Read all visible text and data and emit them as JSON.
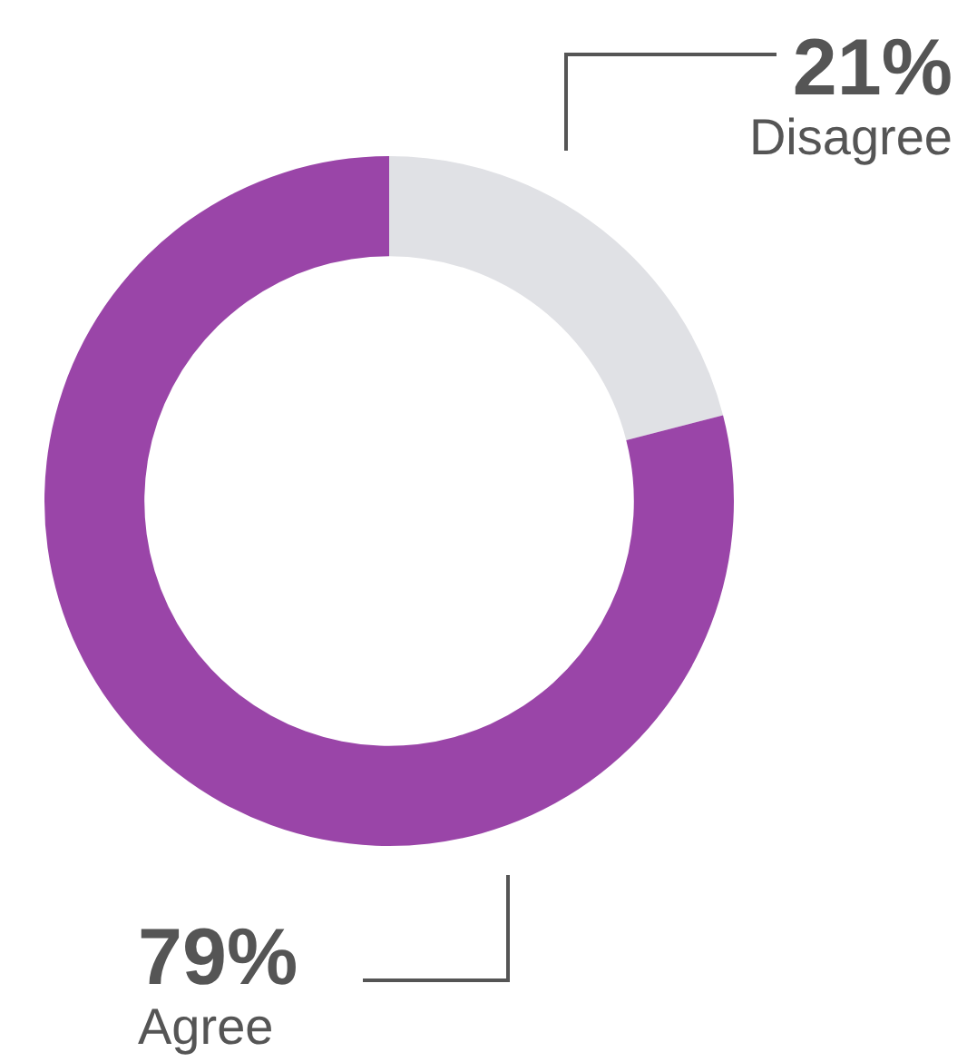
{
  "chart_data": {
    "type": "donut",
    "categories": [
      "Disagree",
      "Agree"
    ],
    "values": [
      21,
      79
    ],
    "colors": [
      "#e0e1e5",
      "#9a45a8"
    ],
    "value_labels": [
      "21%",
      "79%"
    ],
    "legend": false
  }
}
